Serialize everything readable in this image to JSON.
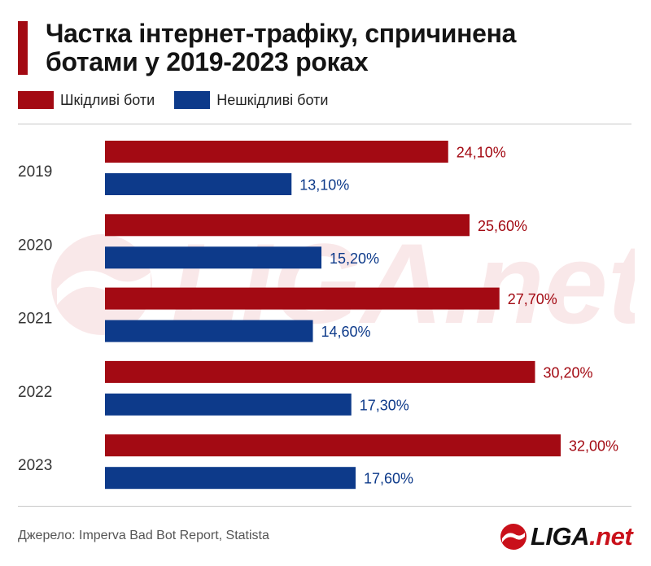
{
  "header": {
    "title_line1": "Частка інтернет-трафіку, спричинена",
    "title_line2": "ботами у 2019-2023 роках"
  },
  "legend": [
    {
      "label": "Шкідливі боти",
      "color": "#a30a13"
    },
    {
      "label": "Нешкідливі боти",
      "color": "#0d3a8a"
    }
  ],
  "chart_data": {
    "type": "bar",
    "orientation": "horizontal",
    "title": "Частка інтернет-трафіку, спричинена ботами у 2019-2023 роках",
    "categories": [
      "2019",
      "2020",
      "2021",
      "2022",
      "2023"
    ],
    "series": [
      {
        "name": "Шкідливі боти",
        "color": "#a30a13",
        "values": [
          24.1,
          25.6,
          27.7,
          30.2,
          32.0
        ],
        "labels": [
          "24,10%",
          "25,60%",
          "27,70%",
          "30,20%",
          "32,00%"
        ]
      },
      {
        "name": "Нешкідливі боти",
        "color": "#0d3a8a",
        "values": [
          13.1,
          15.2,
          14.6,
          17.3,
          17.6
        ],
        "labels": [
          "13,10%",
          "15,20%",
          "14,60%",
          "17,30%",
          "17,60%"
        ]
      }
    ],
    "xlim": [
      0,
      32
    ],
    "grid": false,
    "legend_position": "top-left"
  },
  "footer": {
    "source": "Джерело: Imperva Bad Bot Report, Statista",
    "logo_main": "LIGA",
    "logo_suffix": ".net"
  },
  "watermark": {
    "text": "LIGA.net",
    "color": "#c9101a"
  },
  "colors": {
    "accent_red": "#a30a13",
    "accent_blue": "#0d3a8a"
  }
}
